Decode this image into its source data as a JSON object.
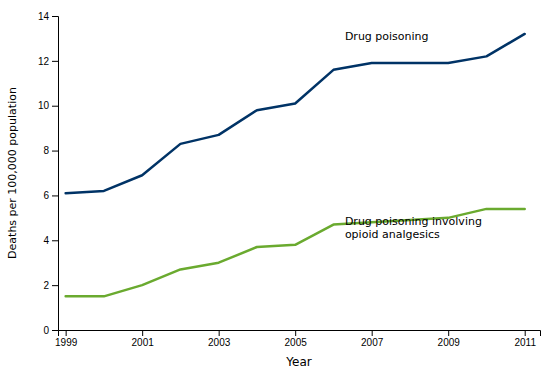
{
  "chart_data": {
    "type": "line",
    "x": [
      1999,
      2000,
      2001,
      2002,
      2003,
      2004,
      2005,
      2006,
      2007,
      2008,
      2009,
      2010,
      2011
    ],
    "series": [
      {
        "color": "#003366",
        "values": [
          6.1,
          6.2,
          6.9,
          8.3,
          8.7,
          9.8,
          10.1,
          11.6,
          11.9,
          11.9,
          11.9,
          12.2,
          13.2
        ]
      },
      {
        "color": "#6aaa2f",
        "values": [
          1.5,
          1.5,
          2.0,
          2.7,
          3.0,
          3.7,
          3.8,
          4.7,
          4.8,
          4.9,
          5.0,
          5.4,
          5.4
        ]
      }
    ],
    "x_label": "Year",
    "y_label": "Deaths per 100,000 population",
    "xlim": [
      1998.8,
      2011.4
    ],
    "ylim": [
      0,
      14
    ],
    "xticks": [
      1999,
      2001,
      2003,
      2005,
      2007,
      2009,
      2011
    ],
    "yticks": [
      0,
      2,
      4,
      6,
      8,
      10,
      12,
      14
    ],
    "annotations": [
      {
        "text": "Drug poisoning",
        "x": 2006.3,
        "y": 13.1
      },
      {
        "text": "Drug poisoning involving\nopioid analgesics",
        "x": 2006.3,
        "y": 4.55
      }
    ],
    "grid": false
  }
}
